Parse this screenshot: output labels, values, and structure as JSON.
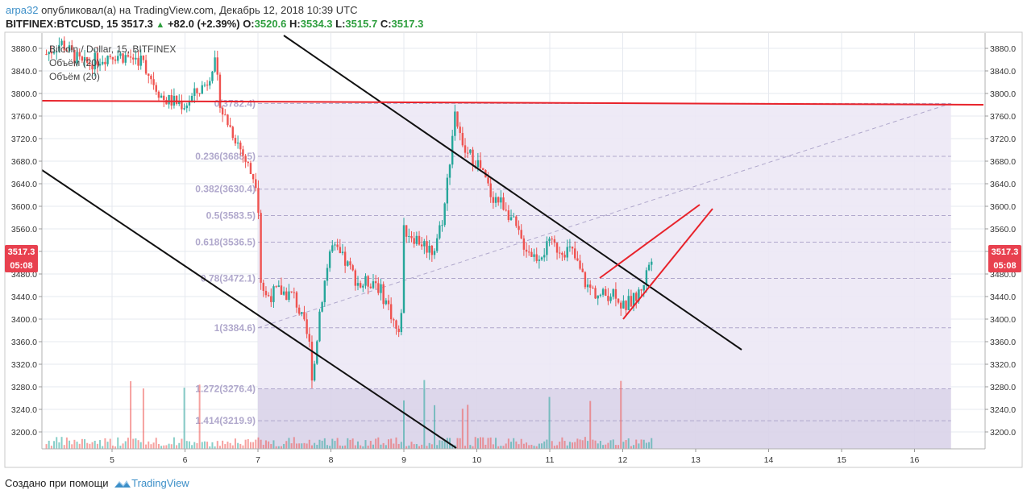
{
  "header": {
    "author": "arpa32",
    "published_text": "опубликовал(а) на TradingView.com, Декабрь 12, 2018 10:39 UTC",
    "symbol": "BITFINEX:BTCUSD, 15",
    "last": "3517.3",
    "change": "+82.0 (+2.39%)",
    "o_label": "O:",
    "o": "3520.6",
    "h_label": "H:",
    "h": "3534.3",
    "l_label": "L:",
    "l": "3515.7",
    "c_label": "C:",
    "c": "3517.3"
  },
  "legend": {
    "series_title": "Bitcoin / Dollar, 15, BITFINEX",
    "volume1": "Объём (20)",
    "volume2": "Объём (20)"
  },
  "price_tag": {
    "price": "3517.3",
    "countdown": "05:08"
  },
  "footer": {
    "created_with": "Создано при помощи",
    "brand": "TradingView"
  },
  "colors": {
    "up": "#26a69a",
    "down": "#ef5350",
    "fib": "#b0a8cc",
    "fib_fill": "#ece8f5",
    "fib_fill_ext": "#d9d3e9",
    "trend_red": "#e8232b",
    "trend_black": "#111111",
    "tag": "#e8414f"
  },
  "chart_data": {
    "type": "candlestick",
    "y_axis_labels": [
      "3200.0",
      "3240.0",
      "3280.0",
      "3320.0",
      "3360.0",
      "3400.0",
      "3440.0",
      "3480.0",
      "3520.0",
      "3560.0",
      "3600.0",
      "3640.0",
      "3680.0",
      "3720.0",
      "3760.0",
      "3800.0",
      "3840.0",
      "3880.0"
    ],
    "ylim": [
      3180,
      3900
    ],
    "x_axis_labels": [
      "5",
      "6",
      "7",
      "8",
      "9",
      "10",
      "11",
      "12",
      "13",
      "14",
      "15",
      "16"
    ],
    "fib_levels": [
      {
        "ratio": "0",
        "price": 3782.4,
        "label": "0(3782.4)"
      },
      {
        "ratio": "0.236",
        "price": 3688.5,
        "label": "0.236(3688.5)"
      },
      {
        "ratio": "0.382",
        "price": 3630.4,
        "label": "0.382(3630.4)"
      },
      {
        "ratio": "0.5",
        "price": 3583.5,
        "label": "0.5(3583.5)"
      },
      {
        "ratio": "0.618",
        "price": 3536.5,
        "label": "0.618(3536.5)"
      },
      {
        "ratio": "0.78",
        "price": 3472.1,
        "label": "0.78(3472.1)"
      },
      {
        "ratio": "1",
        "price": 3384.6,
        "label": "1(3384.6)"
      },
      {
        "ratio": "1.272",
        "price": 3276.4,
        "label": "1.272(3276.4)"
      },
      {
        "ratio": "1.414",
        "price": 3219.9,
        "label": "1.414(3219.9)"
      }
    ],
    "horizontal_line": 3782.4,
    "price_path": [
      [
        4.1,
        3870
      ],
      [
        4.3,
        3890
      ],
      [
        4.6,
        3850
      ],
      [
        5.0,
        3870
      ],
      [
        5.4,
        3860
      ],
      [
        5.7,
        3790
      ],
      [
        6.0,
        3780
      ],
      [
        6.3,
        3820
      ],
      [
        6.4,
        3860
      ],
      [
        6.5,
        3770
      ],
      [
        6.7,
        3720
      ],
      [
        6.9,
        3660
      ],
      [
        7.0,
        3640
      ],
      [
        7.02,
        3480
      ],
      [
        7.1,
        3440
      ],
      [
        7.3,
        3450
      ],
      [
        7.5,
        3440
      ],
      [
        7.7,
        3360
      ],
      [
        7.75,
        3290
      ],
      [
        7.85,
        3420
      ],
      [
        8.0,
        3530
      ],
      [
        8.2,
        3500
      ],
      [
        8.4,
        3460
      ],
      [
        8.6,
        3470
      ],
      [
        8.8,
        3420
      ],
      [
        8.95,
        3360
      ],
      [
        9.0,
        3560
      ],
      [
        9.2,
        3540
      ],
      [
        9.4,
        3520
      ],
      [
        9.55,
        3590
      ],
      [
        9.7,
        3770
      ],
      [
        9.8,
        3700
      ],
      [
        10.0,
        3680
      ],
      [
        10.2,
        3620
      ],
      [
        10.4,
        3600
      ],
      [
        10.6,
        3540
      ],
      [
        10.8,
        3510
      ],
      [
        11.0,
        3530
      ],
      [
        11.3,
        3520
      ],
      [
        11.5,
        3460
      ],
      [
        11.7,
        3440
      ],
      [
        11.9,
        3450
      ],
      [
        12.0,
        3420
      ],
      [
        12.2,
        3440
      ],
      [
        12.3,
        3470
      ],
      [
        12.4,
        3517.3
      ]
    ]
  }
}
